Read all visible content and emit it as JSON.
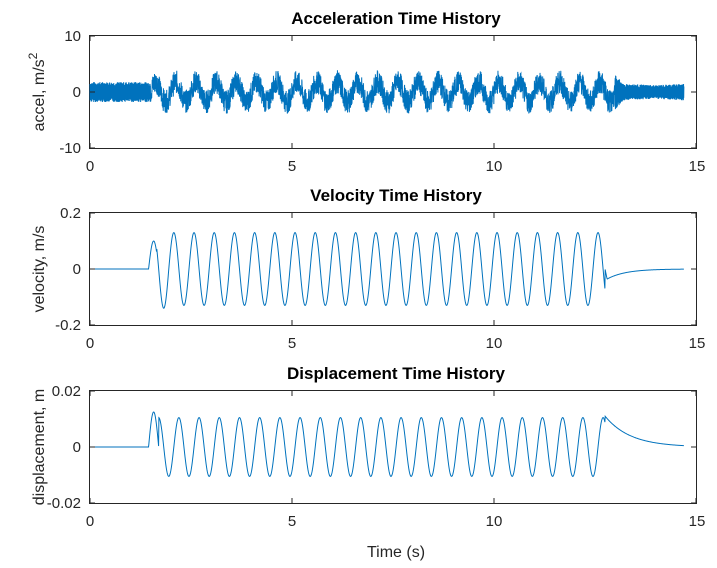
{
  "chart_data": [
    {
      "type": "line",
      "title": "Acceleration Time History",
      "ylabel": "accel, m/s",
      "ylabel_superscript": "2",
      "xlabel": "",
      "xlim": [
        0,
        15
      ],
      "ylim": [
        -10,
        10
      ],
      "xticks": [
        "0",
        "5",
        "10",
        "15"
      ],
      "yticks": [
        "10",
        "0",
        "-10"
      ],
      "color": "#0072BD",
      "series": [
        {
          "x": [
            0,
            1.5,
            1.5,
            2,
            3,
            4,
            5,
            6,
            7,
            8,
            9,
            10,
            11,
            12,
            12.8,
            13.2,
            14,
            14.7
          ],
          "y_max": [
            1.8,
            1.8,
            3.5,
            4.0,
            4.0,
            4.2,
            3.8,
            4.0,
            4.2,
            4.0,
            4.0,
            4.0,
            4.0,
            4.0,
            4.8,
            1.5,
            1.2,
            1.5
          ],
          "y_min": [
            -1.8,
            -1.8,
            -4.0,
            -3.5,
            -4.0,
            -3.8,
            -4.0,
            -4.0,
            -4.0,
            -4.0,
            -3.6,
            -4.0,
            -4.0,
            -5.5,
            -4.5,
            -1.0,
            -0.8,
            -1.5
          ],
          "oscillation_period_s": 0.5
        }
      ]
    },
    {
      "type": "line",
      "title": "Velocity Time History",
      "ylabel": "velocity, m/s",
      "xlabel": "",
      "xlim": [
        0,
        15
      ],
      "ylim": [
        -0.2,
        0.2
      ],
      "xticks": [
        "0",
        "5",
        "10",
        "15"
      ],
      "yticks": [
        "0.2",
        "0",
        "-0.2"
      ],
      "color": "#0072BD",
      "series": [
        {
          "start_s": 1.45,
          "end_s": 12.75,
          "period_s": 0.5,
          "amplitude": 0.13,
          "first_peak": 0.1,
          "first_trough": -0.14,
          "end_dip": -0.04,
          "settle_s": 14.7
        }
      ]
    },
    {
      "type": "line",
      "title": "Displacement Time History",
      "ylabel": "displacement, m",
      "xlabel": "Time (s)",
      "xlim": [
        0,
        15
      ],
      "ylim": [
        -0.02,
        0.02
      ],
      "xticks": [
        "0",
        "5",
        "10",
        "15"
      ],
      "yticks": [
        "0.02",
        "0",
        "-0.02"
      ],
      "color": "#0072BD",
      "series": [
        {
          "start_s": 1.45,
          "end_s": 12.75,
          "period_s": 0.5,
          "amplitude": 0.0105,
          "first_peak": 0.0125,
          "end_peak": 0.011,
          "settle_s": 14.7
        }
      ]
    }
  ]
}
